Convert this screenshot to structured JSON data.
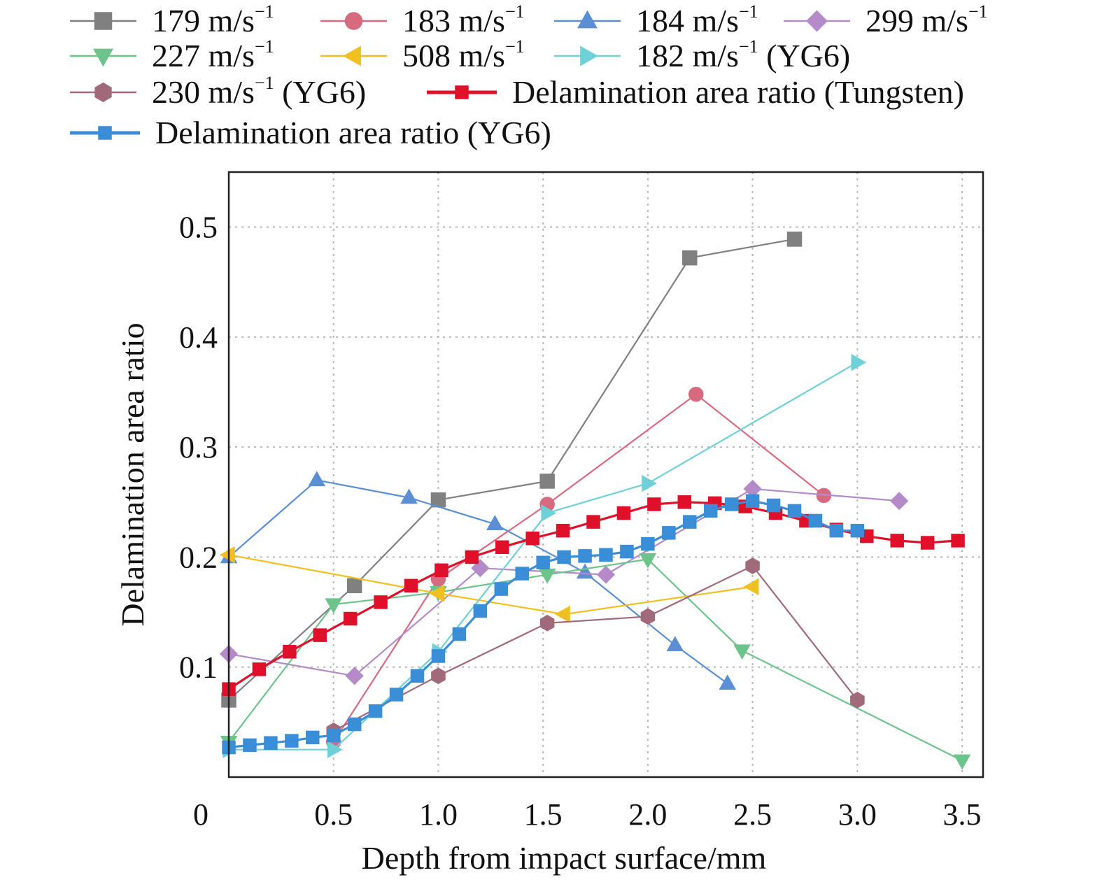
{
  "chart_data": {
    "type": "line",
    "xlabel": "Depth from impact surface/mm",
    "ylabel": "Delamination area ratio",
    "xlim": [
      0,
      3.6
    ],
    "ylim": [
      0,
      0.55
    ],
    "x_ticks": [
      0,
      0.5,
      1.0,
      1.5,
      2.0,
      2.5,
      3.0,
      3.5
    ],
    "x_tick_labels": [
      "0",
      "0.5",
      "1.0",
      "1.5",
      "2.0",
      "2.5",
      "3.0",
      "3.5"
    ],
    "y_ticks": [
      0.1,
      0.2,
      0.3,
      0.4,
      0.5
    ],
    "y_tick_labels": [
      "0.1",
      "0.2",
      "0.3",
      "0.4",
      "0.5"
    ],
    "grid": true,
    "legend_position": "top",
    "series": [
      {
        "name_main": "179 m/s",
        "name_sup": "−1",
        "name_suffix": "",
        "color": "#808080",
        "marker": "square",
        "x": [
          0,
          0.6,
          1.0,
          1.52,
          2.2,
          2.7
        ],
        "y": [
          0.07,
          0.174,
          0.252,
          0.269,
          0.472,
          0.489
        ]
      },
      {
        "name_main": "183 m/s",
        "name_sup": "−1",
        "name_suffix": "",
        "color": "#d86a7f",
        "marker": "circle",
        "x": [
          0.5,
          1.0,
          1.52,
          2.23,
          2.84
        ],
        "y": [
          0.032,
          0.18,
          0.248,
          0.348,
          0.256
        ]
      },
      {
        "name_main": "184 m/s",
        "name_sup": "−1",
        "name_suffix": "",
        "color": "#5a8fd4",
        "marker": "triangle-up",
        "x": [
          0,
          0.42,
          0.86,
          1.27,
          1.7,
          2.13,
          2.38
        ],
        "y": [
          0.2,
          0.27,
          0.254,
          0.23,
          0.186,
          0.12,
          0.085
        ]
      },
      {
        "name_main": "299 m/s",
        "name_sup": "−1",
        "name_suffix": "",
        "color": "#b48ac8",
        "marker": "diamond",
        "x": [
          0,
          0.6,
          1.2,
          1.8,
          2.5,
          3.2
        ],
        "y": [
          0.112,
          0.092,
          0.19,
          0.184,
          0.262,
          0.251
        ]
      },
      {
        "name_main": "227 m/s",
        "name_sup": "−1",
        "name_suffix": "",
        "color": "#6cc48a",
        "marker": "triangle-down",
        "x": [
          0,
          0.5,
          1.0,
          1.52,
          2.0,
          2.45,
          3.5
        ],
        "y": [
          0.032,
          0.157,
          0.168,
          0.184,
          0.198,
          0.115,
          0.015
        ]
      },
      {
        "name_main": "508 m/s",
        "name_sup": "−1",
        "name_suffix": "",
        "color": "#f0c020",
        "marker": "triangle-left",
        "x": [
          0,
          1.0,
          1.6,
          2.5
        ],
        "y": [
          0.202,
          0.167,
          0.148,
          0.173
        ]
      },
      {
        "name_main": "182 m/s",
        "name_sup": "−1",
        "name_suffix": " (YG6)",
        "color": "#6fd0d8",
        "marker": "triangle-right",
        "x": [
          0.0,
          0.5,
          1.0,
          1.52,
          2.0,
          3.0
        ],
        "y": [
          0.025,
          0.025,
          0.114,
          0.24,
          0.267,
          0.377
        ]
      },
      {
        "name_main": "230 m/s",
        "name_sup": "−1",
        "name_suffix": " (YG6)",
        "color": "#a06a7a",
        "marker": "hexagon",
        "x": [
          0.5,
          1.0,
          1.52,
          2.0,
          2.5,
          3.0
        ],
        "y": [
          0.042,
          0.092,
          0.14,
          0.146,
          0.192,
          0.07
        ]
      },
      {
        "name_main": "Delamination area ratio (Tungsten)",
        "name_sup": "",
        "name_suffix": "",
        "color": "#e0102a",
        "marker": "square",
        "x": [
          0,
          0.145,
          0.29,
          0.435,
          0.58,
          0.725,
          0.87,
          1.015,
          1.16,
          1.305,
          1.45,
          1.595,
          1.74,
          1.885,
          2.03,
          2.175,
          2.32,
          2.465,
          2.61,
          2.755,
          2.9,
          3.045,
          3.19,
          3.335,
          3.48
        ],
        "y": [
          0.08,
          0.098,
          0.114,
          0.129,
          0.144,
          0.159,
          0.174,
          0.188,
          0.2,
          0.209,
          0.217,
          0.224,
          0.232,
          0.24,
          0.248,
          0.25,
          0.249,
          0.246,
          0.24,
          0.233,
          0.225,
          0.219,
          0.215,
          0.213,
          0.215
        ]
      },
      {
        "name_main": "Delamination area ratio (YG6)",
        "name_sup": "",
        "name_suffix": "",
        "color": "#3a8ed8",
        "marker": "square",
        "x": [
          0,
          0.1,
          0.2,
          0.3,
          0.4,
          0.5,
          0.6,
          0.7,
          0.8,
          0.9,
          1.0,
          1.1,
          1.2,
          1.3,
          1.4,
          1.5,
          1.6,
          1.7,
          1.8,
          1.9,
          2.0,
          2.1,
          2.2,
          2.3,
          2.4,
          2.5,
          2.6,
          2.7,
          2.8,
          2.9,
          3.0
        ],
        "y": [
          0.027,
          0.029,
          0.031,
          0.033,
          0.036,
          0.038,
          0.048,
          0.06,
          0.075,
          0.092,
          0.11,
          0.13,
          0.151,
          0.171,
          0.185,
          0.195,
          0.2,
          0.201,
          0.202,
          0.205,
          0.212,
          0.222,
          0.232,
          0.242,
          0.248,
          0.251,
          0.247,
          0.242,
          0.233,
          0.224,
          0.224
        ]
      }
    ]
  }
}
